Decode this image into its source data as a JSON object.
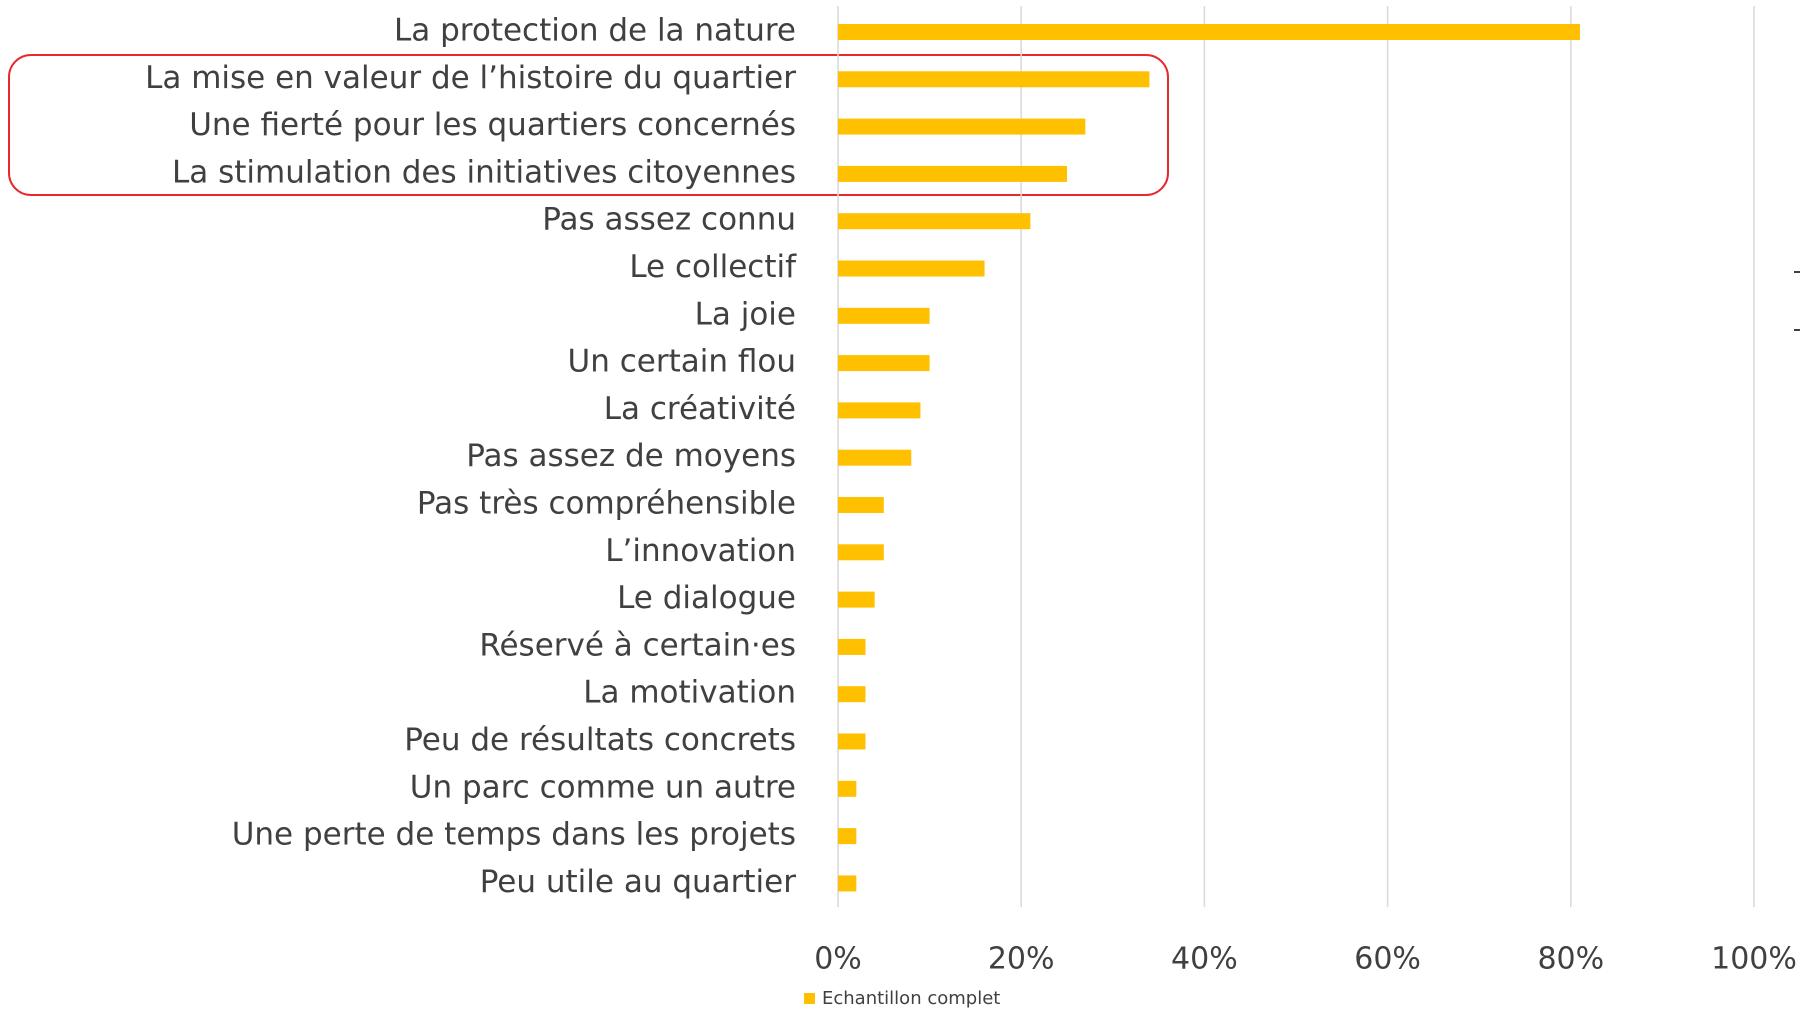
{
  "chart_data": {
    "type": "hbar",
    "categories": [
      "La protection de la nature",
      "La mise en valeur de l’histoire du quartier",
      "Une fierté pour les quartiers concernés",
      "La stimulation des initiatives citoyennes",
      "Pas assez connu",
      "Le collectif",
      "La joie",
      "Un certain flou",
      "La créativité",
      "Pas assez de moyens",
      "Pas très compréhensible",
      "L’innovation",
      "Le dialogue",
      "Réservé à certain·es",
      "La motivation",
      "Peu de résultats concrets",
      "Un parc comme un autre",
      "Une perte de temps dans les projets",
      "Peu utile au quartier"
    ],
    "series": [
      {
        "name": "Echantillon complet",
        "color": "#ffc000",
        "values": [
          81,
          34,
          27,
          25,
          21,
          16,
          10,
          10,
          9,
          8,
          5,
          5,
          4,
          3,
          3,
          3,
          2,
          2,
          2
        ]
      }
    ],
    "xlim": [
      0,
      100
    ],
    "xticks": [
      {
        "value": 0,
        "label": "0%"
      },
      {
        "value": 20,
        "label": "20%"
      },
      {
        "value": 40,
        "label": "40%"
      },
      {
        "value": 60,
        "label": "60%"
      },
      {
        "value": 80,
        "label": "80%"
      },
      {
        "value": 100,
        "label": "100%"
      }
    ],
    "grid": true,
    "legend": "bottom"
  }
}
